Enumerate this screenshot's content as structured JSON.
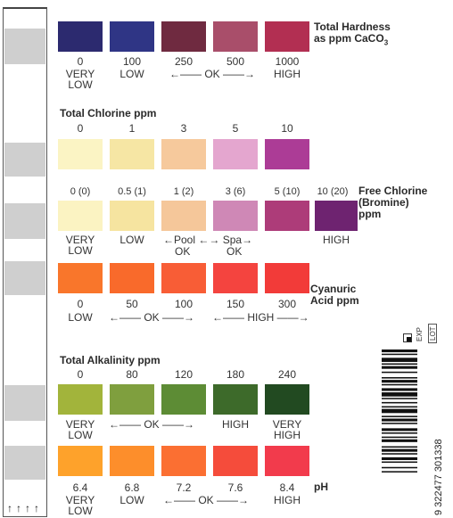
{
  "hardness": {
    "title_line1": "Total Hardness",
    "title_line2": "as ppm CaCO",
    "title_sub": "3",
    "values": [
      "0",
      "100",
      "250",
      "500",
      "1000"
    ],
    "colors": [
      "#2c2a6f",
      "#2f3585",
      "#6f2a40",
      "#a94e6a",
      "#b22f52"
    ],
    "level_very": "VERY",
    "level_low_a": "LOW",
    "level_low": "LOW",
    "level_ok": "OK",
    "level_high": "HIGH"
  },
  "total_chlorine": {
    "title": "Total Chlorine ppm",
    "values": [
      "0",
      "1",
      "3",
      "5",
      "10"
    ],
    "colors": [
      "#fbf4c4",
      "#f6e6a4",
      "#f6c99c",
      "#e4a6cf",
      "#ac3c96"
    ]
  },
  "free_chlorine": {
    "title_line1": "Free Chlorine",
    "title_line2": "(Bromine)",
    "title_line3": "ppm",
    "values": [
      "0 (0)",
      "0.5 (1)",
      "1 (2)",
      "3 (6)",
      "5 (10)",
      "10 (20)"
    ],
    "colors": [
      "#fbf3c2",
      "#f6e4a0",
      "#f5c79a",
      "#cf88b6",
      "#ad3c79",
      "#6e2370"
    ],
    "level_very": "VERY",
    "level_low_a": "LOW",
    "level_low": "LOW",
    "pool_label": "Pool",
    "spa_label": "Spa",
    "ok1": "OK",
    "ok2": "OK",
    "level_high": "HIGH"
  },
  "cyanuric": {
    "title_line1": "Cyanuric",
    "title_line2": "Acid ppm",
    "values": [
      "0",
      "50",
      "100",
      "150",
      "300"
    ],
    "colors": [
      "#f9762b",
      "#f96a2b",
      "#f85d36",
      "#f4443f",
      "#f23b39"
    ],
    "level_low": "LOW",
    "level_ok": "OK",
    "level_high": "HIGH"
  },
  "alkalinity": {
    "title": "Total Alkalinity ppm",
    "values": [
      "0",
      "80",
      "120",
      "180",
      "240"
    ],
    "colors": [
      "#a2b43b",
      "#7f9f3e",
      "#5d8c35",
      "#3d6a2a",
      "#224a21"
    ],
    "level_very": "VERY",
    "level_low_a": "LOW",
    "level_ok": "OK",
    "level_high": "HIGH",
    "level_very2": "VERY",
    "level_high2": "HIGH"
  },
  "ph": {
    "title": "pH",
    "values": [
      "6.4",
      "6.8",
      "7.2",
      "7.6",
      "8.4"
    ],
    "colors": [
      "#fea22b",
      "#fd8e2b",
      "#fb6f32",
      "#f54c3b",
      "#f23b4c"
    ],
    "level_very": "VERY",
    "level_low_a": "LOW",
    "level_low": "LOW",
    "level_ok": "OK",
    "level_high": "HIGH"
  },
  "barcode": {
    "number": "9 322477 301338",
    "exp_label": "EXP",
    "lot_label": "LOT"
  },
  "strip": {
    "pad_color": "#cfcfcf"
  }
}
